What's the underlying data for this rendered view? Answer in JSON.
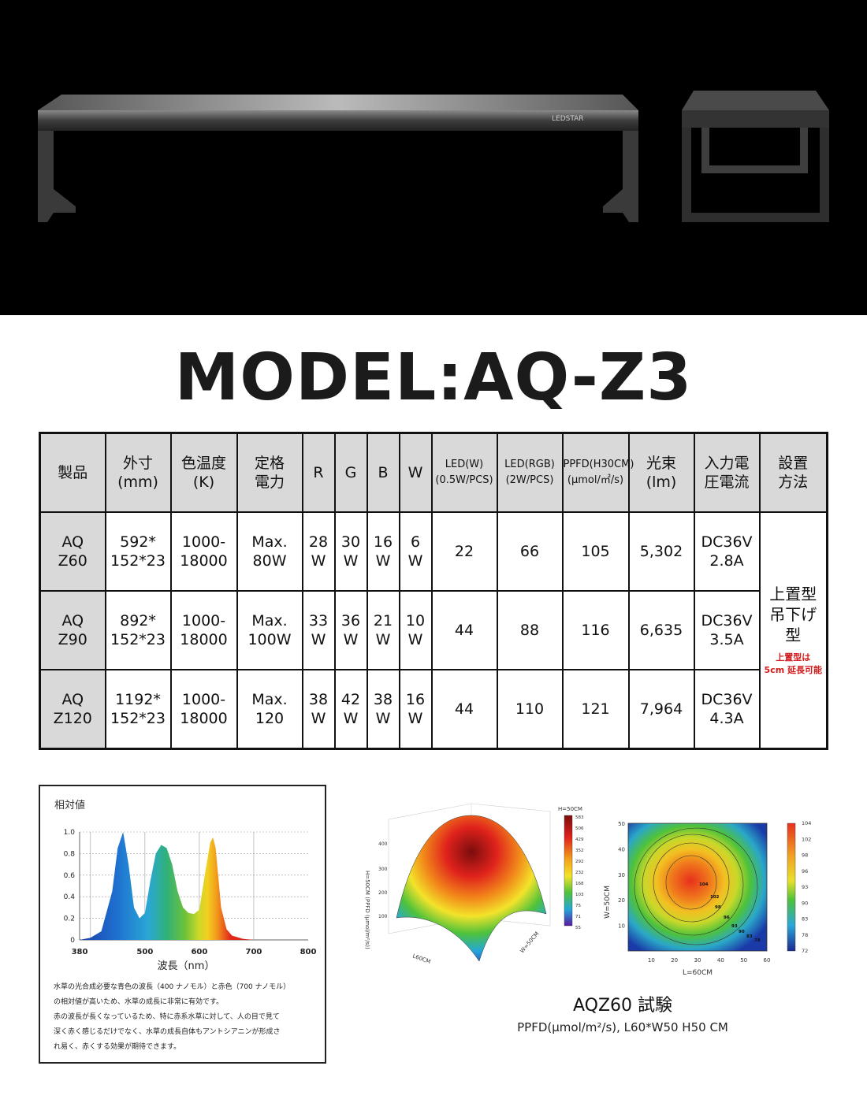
{
  "hero": {
    "brand": "LEDSTAR"
  },
  "model_title": "MODEL:AQ-Z3",
  "spec_table": {
    "headers": [
      [
        "製品"
      ],
      [
        "外寸",
        "(mm)"
      ],
      [
        "色温度",
        "(K)"
      ],
      [
        "定格",
        "電力"
      ],
      [
        "R"
      ],
      [
        "G"
      ],
      [
        "B"
      ],
      [
        "W"
      ],
      [
        "LED(W)",
        "(0.5W/PCS)"
      ],
      [
        "LED(RGB)",
        "(2W/PCS)"
      ],
      [
        "PPFD(H30CM)",
        "(μmol/㎡/s)"
      ],
      [
        "光束",
        "(lm)"
      ],
      [
        "入力電",
        "圧電流"
      ],
      [
        "設置",
        "方法"
      ]
    ],
    "rows": [
      {
        "product": [
          "AQ",
          "Z60"
        ],
        "size": [
          "592*",
          "152*23"
        ],
        "color_temp": [
          "1000-",
          "18000"
        ],
        "power": [
          "Max.",
          "80W"
        ],
        "r": [
          "28",
          "W"
        ],
        "g": [
          "30",
          "W"
        ],
        "b": [
          "16",
          "W"
        ],
        "w": [
          "6",
          "W"
        ],
        "led_w": "22",
        "led_rgb": "66",
        "ppfd": "105",
        "lumen": "5,302",
        "input": [
          "DC36V",
          "2.8A"
        ]
      },
      {
        "product": [
          "AQ",
          "Z90"
        ],
        "size": [
          "892*",
          "152*23"
        ],
        "color_temp": [
          "1000-",
          "18000"
        ],
        "power": [
          "Max.",
          "100W"
        ],
        "r": [
          "33",
          "W"
        ],
        "g": [
          "36",
          "W"
        ],
        "b": [
          "21",
          "W"
        ],
        "w": [
          "10",
          "W"
        ],
        "led_w": "44",
        "led_rgb": "88",
        "ppfd": "116",
        "lumen": "6,635",
        "input": [
          "DC36V",
          "3.5A"
        ]
      },
      {
        "product": [
          "AQ",
          "Z120"
        ],
        "size": [
          "1192*",
          "152*23"
        ],
        "color_temp": [
          "1000-",
          "18000"
        ],
        "power": [
          "Max.",
          "120"
        ],
        "r": [
          "38",
          "W"
        ],
        "g": [
          "42",
          "W"
        ],
        "b": [
          "38",
          "W"
        ],
        "w": [
          "16",
          "W"
        ],
        "led_w": "44",
        "led_rgb": "110",
        "ppfd": "121",
        "lumen": "7,964",
        "input": [
          "DC36V",
          "4.3A"
        ]
      }
    ],
    "install": {
      "main": [
        "上置型",
        "吊下げ",
        "型"
      ],
      "note": [
        "上置型は",
        "5cm 延長可能"
      ]
    }
  },
  "spectrum": {
    "title": "相対値",
    "xlabel": "波長（nm）",
    "x_ticks": [
      "380",
      "500",
      "600",
      "700",
      "800"
    ],
    "y_ticks": [
      "1.0",
      "0.8",
      "0.6",
      "0.4",
      "0.2",
      "0"
    ],
    "description": [
      "水草の光合成必要な青色の波長（400 ナノモル）と赤色（700 ナノモル）",
      "の相対値が高いため、水草の成長に非常に有効です。",
      "赤の波長が長くなっているため、特に赤系水草に対して、人の目で見て",
      "深く赤く感じるだけでなく、水草の成長自体もアントシアニンが形成さ",
      "れ易く、赤くする効果が期待できます。"
    ]
  },
  "chart_data": [
    {
      "type": "area",
      "title": "相対値",
      "xlabel": "波長（nm）",
      "ylabel": "相対値",
      "xlim": [
        380,
        800
      ],
      "ylim": [
        0,
        1.0
      ],
      "x": [
        380,
        400,
        420,
        440,
        450,
        460,
        470,
        480,
        490,
        500,
        510,
        520,
        530,
        540,
        550,
        560,
        570,
        580,
        590,
        600,
        610,
        620,
        625,
        630,
        640,
        650,
        660,
        680,
        700,
        720,
        750,
        800
      ],
      "values": [
        0,
        0.02,
        0.08,
        0.45,
        0.85,
        1.0,
        0.7,
        0.3,
        0.2,
        0.25,
        0.55,
        0.8,
        0.88,
        0.85,
        0.7,
        0.45,
        0.3,
        0.25,
        0.24,
        0.28,
        0.6,
        0.9,
        0.95,
        0.85,
        0.3,
        0.1,
        0.04,
        0.01,
        0,
        0,
        0,
        0
      ]
    },
    {
      "type": "surface",
      "title": "H=50CM",
      "zlabel": "H=50CM (PPFD (μmol/m²/s))",
      "xlabel": "L60CM",
      "ylabel": "W=50CM",
      "z_ticks": [
        "100",
        "200",
        "300",
        "400"
      ],
      "colorbar": [
        "583",
        "506",
        "429",
        "352",
        "292",
        "232",
        "168",
        "103",
        "75",
        "71",
        "55"
      ]
    },
    {
      "type": "heatmap",
      "xlabel": "L=60CM",
      "ylabel": "W=50CM",
      "xlim": [
        0,
        60
      ],
      "ylim": [
        0,
        50
      ],
      "x_ticks": [
        "10",
        "20",
        "30",
        "40",
        "50",
        "60"
      ],
      "y_ticks": [
        "10",
        "20",
        "30",
        "40",
        "50"
      ],
      "contour_labels": [
        "104",
        "102",
        "98",
        "96",
        "93",
        "90",
        "83",
        "78"
      ],
      "colorbar": [
        "104",
        "102",
        "98",
        "96",
        "93",
        "90",
        "83",
        "78",
        "72"
      ]
    }
  ],
  "heatmap_caption": {
    "title": "AQZ60 試験",
    "sub": "PPFD(μmol/m²/s), L60*W50 H50 CM"
  }
}
